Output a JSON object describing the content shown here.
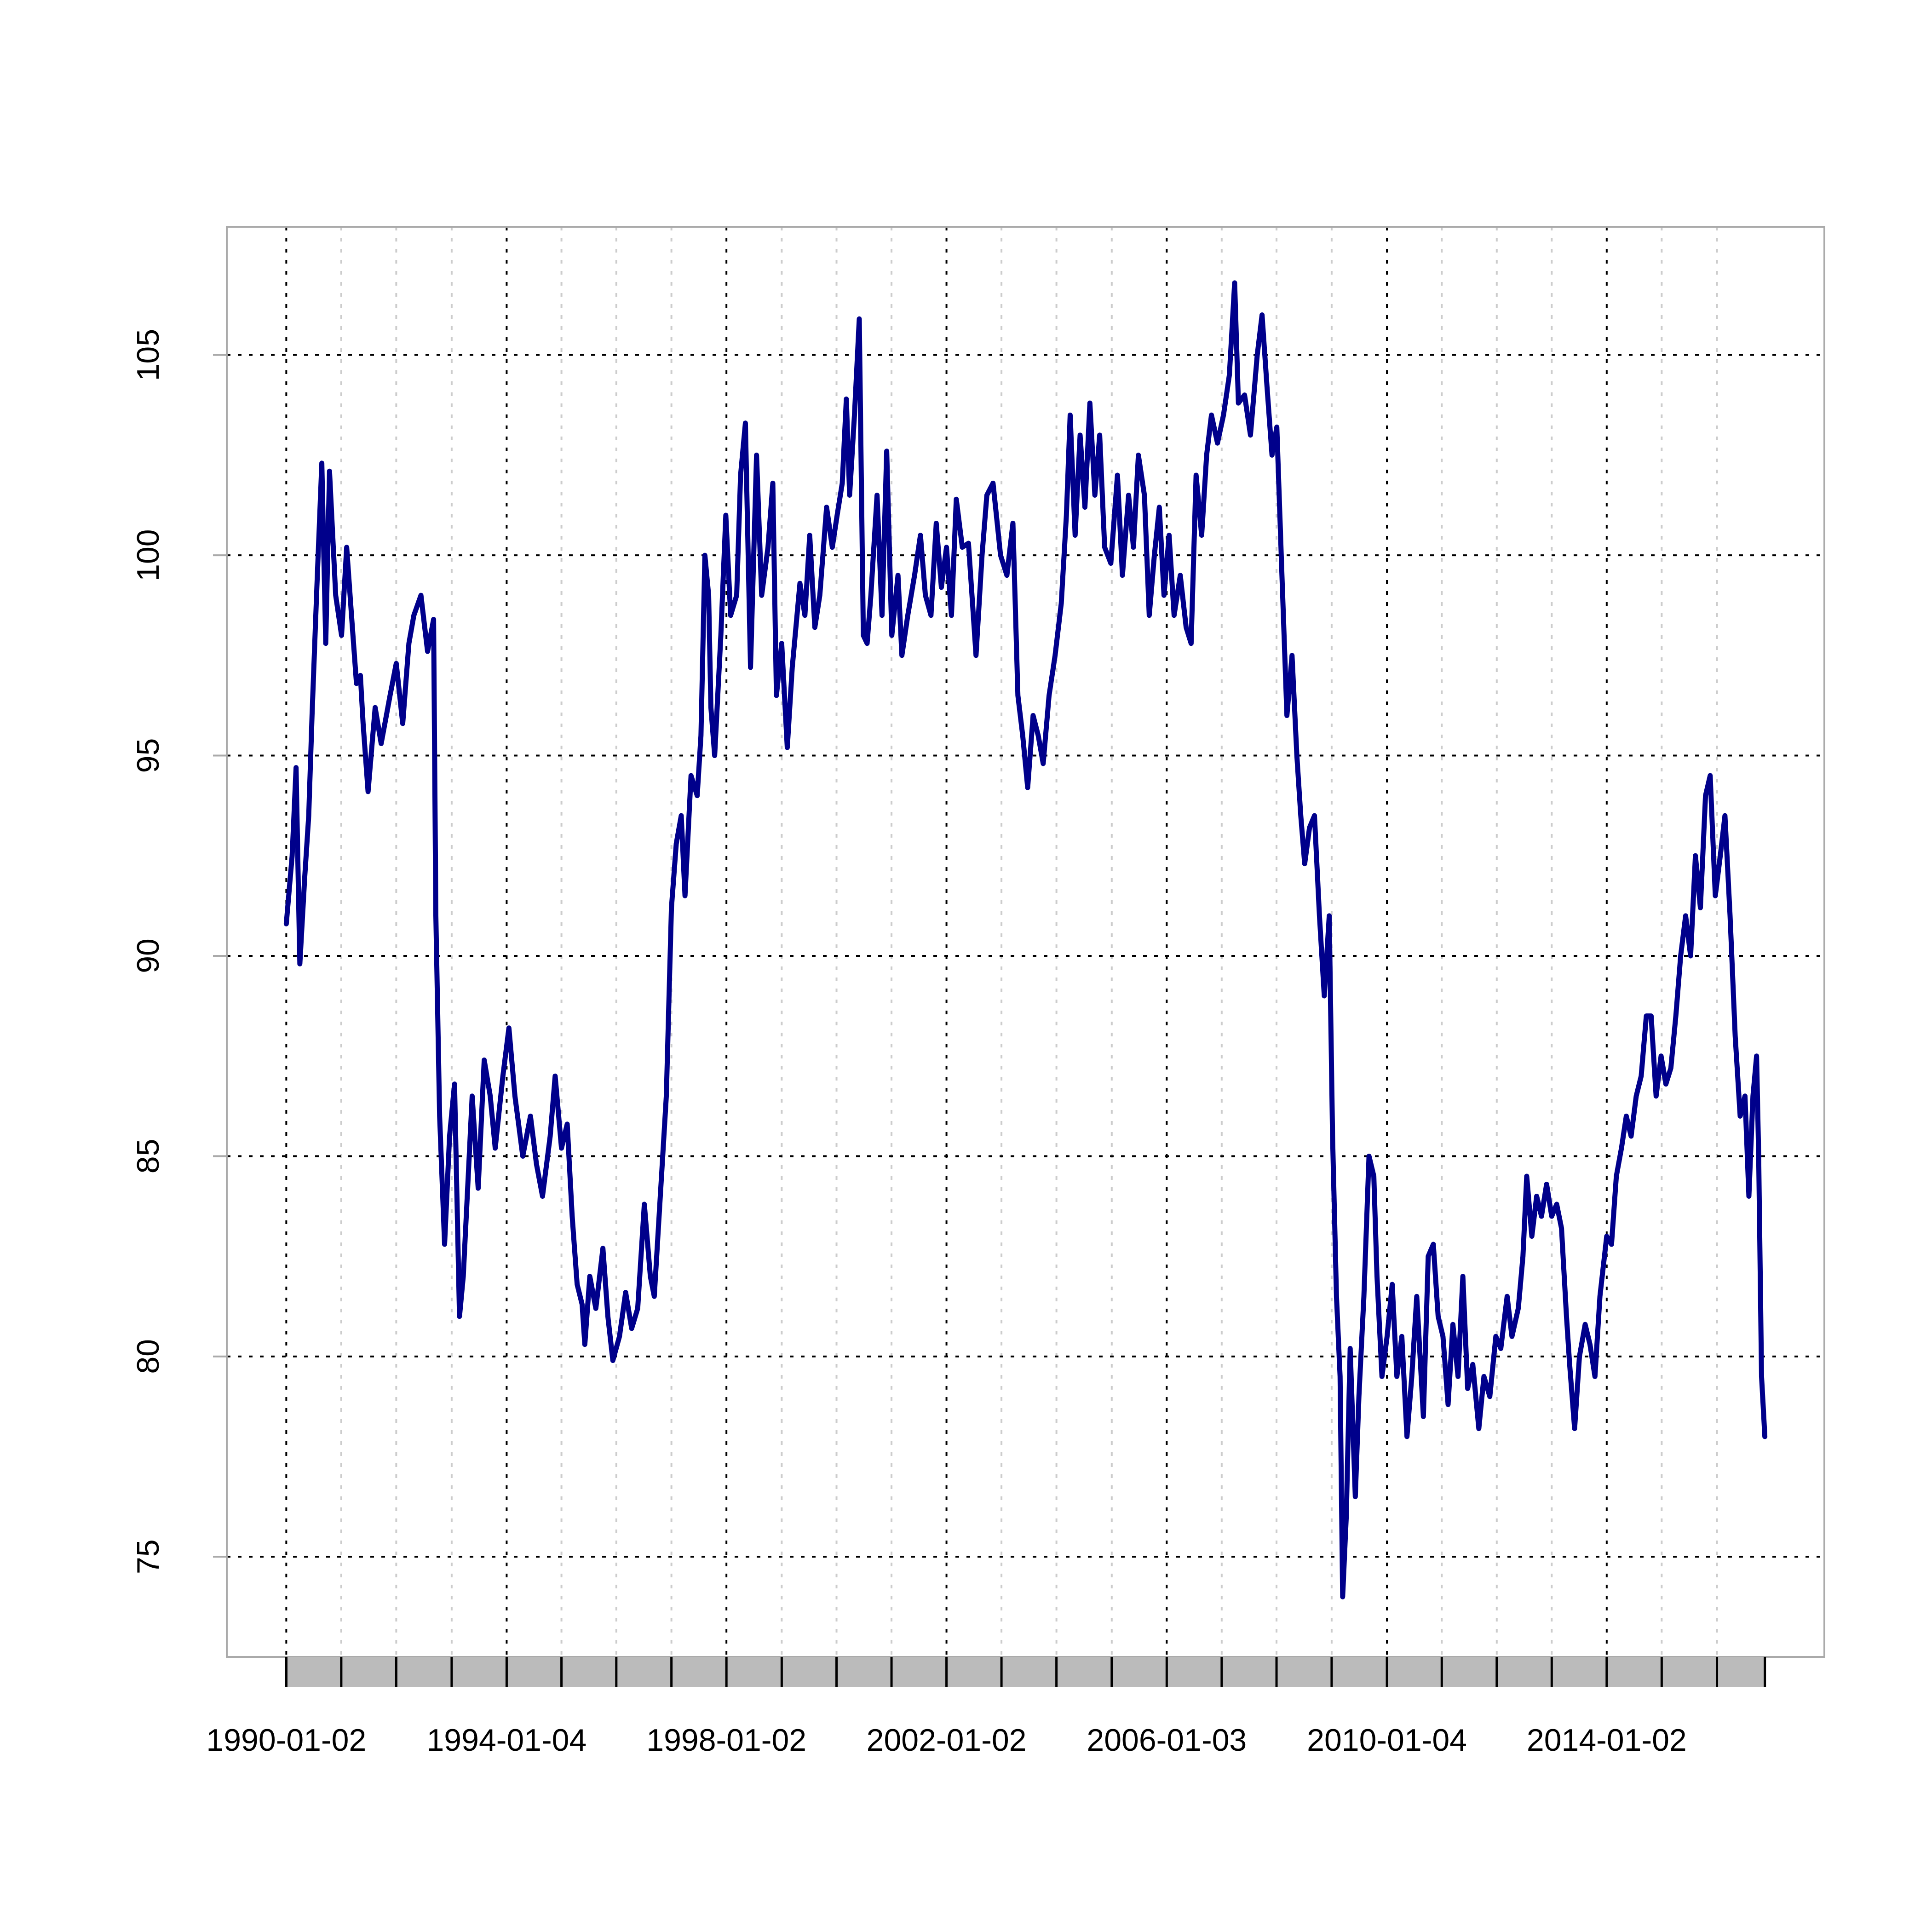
{
  "chart_data": {
    "type": "line",
    "x": [
      "1990-01-02",
      "1990-02-10",
      "1990-03-08",
      "1990-04-02",
      "1990-05-05",
      "1990-05-31",
      "1990-06-22",
      "1990-07-24",
      "1990-08-26",
      "1990-09-21",
      "1990-10-16",
      "1990-11-26",
      "1991-01-04",
      "1991-02-07",
      "1991-03-11",
      "1991-04-13",
      "1991-05-09",
      "1991-05-27",
      "1991-06-29",
      "1991-08-15",
      "1991-09-24",
      "1991-11-22",
      "1992-01-02",
      "1992-02-14",
      "1992-03-26",
      "1992-04-28",
      "1992-06-14",
      "1992-07-28",
      "1992-09-06",
      "1992-09-21",
      "1992-10-16",
      "1992-11-18",
      "1992-12-21",
      "1993-01-23",
      "1993-02-25",
      "1993-03-22",
      "1993-04-24",
      "1993-05-20",
      "1993-06-29",
      "1993-08-08",
      "1993-09-17",
      "1993-10-20",
      "1993-12-10",
      "1994-01-19",
      "1994-02-28",
      "1994-04-21",
      "1994-06-11",
      "1994-07-21",
      "1994-08-30",
      "1994-10-20",
      "1994-11-22",
      "1995-01-03",
      "1995-02-10",
      "1995-03-15",
      "1995-04-17",
      "1995-05-20",
      "1995-06-07",
      "1995-07-10",
      "1995-08-19",
      "1995-10-05",
      "1995-11-07",
      "1995-12-10",
      "1996-01-23",
      "1996-03-04",
      "1996-04-13",
      "1996-05-23",
      "1996-07-06",
      "1996-08-15",
      "1996-09-10",
      "1996-10-20",
      "1996-11-29",
      "1997-01-02",
      "1997-02-03",
      "1997-03-08",
      "1997-04-02",
      "1997-05-12",
      "1997-06-22",
      "1997-07-17",
      "1997-08-12",
      "1997-09-06",
      "1997-09-21",
      "1997-10-16",
      "1997-11-26",
      "1997-12-29",
      "1998-01-30",
      "1998-03-11",
      "1998-04-06",
      "1998-05-08",
      "1998-06-11",
      "1998-07-21",
      "1998-08-24",
      "1998-10-05",
      "1998-11-06",
      "1998-11-30",
      "1999-01-04",
      "1999-02-10",
      "1999-03-15",
      "1999-05-05",
      "1999-06-07",
      "1999-07-09",
      "1999-08-12",
      "1999-09-14",
      "1999-10-29",
      "1999-12-06",
      "2000-01-07",
      "2000-02-10",
      "2000-03-08",
      "2000-03-30",
      "2000-05-01",
      "2000-06-02",
      "2000-06-29",
      "2000-07-24",
      "2000-08-18",
      "2000-09-28",
      "2000-10-31",
      "2000-12-01",
      "2001-01-04",
      "2001-02-14",
      "2001-03-12",
      "2001-04-20",
      "2001-06-04",
      "2001-07-13",
      "2001-08-15",
      "2001-09-21",
      "2001-10-26",
      "2001-11-29",
      "2002-01-02",
      "2002-02-04",
      "2002-03-08",
      "2002-04-17",
      "2002-05-28",
      "2002-07-17",
      "2002-08-26",
      "2002-09-27",
      "2002-11-07",
      "2002-12-27",
      "2003-02-07",
      "2003-03-19",
      "2003-04-21",
      "2003-05-23",
      "2003-06-25",
      "2003-07-31",
      "2003-09-03",
      "2003-10-06",
      "2003-11-14",
      "2003-12-24",
      "2004-02-03",
      "2004-03-08",
      "2004-04-02",
      "2004-05-05",
      "2004-06-07",
      "2004-07-09",
      "2004-08-11",
      "2004-09-13",
      "2004-10-15",
      "2004-11-17",
      "2004-12-28",
      "2005-02-10",
      "2005-03-15",
      "2005-04-25",
      "2005-05-27",
      "2005-06-29",
      "2005-08-08",
      "2005-09-09",
      "2005-10-13",
      "2005-11-15",
      "2005-12-16",
      "2006-01-19",
      "2006-02-21",
      "2006-04-03",
      "2006-05-12",
      "2006-06-14",
      "2006-07-17",
      "2006-08-23",
      "2006-09-25",
      "2006-10-27",
      "2006-12-06",
      "2007-01-15",
      "2007-02-23",
      "2007-03-30",
      "2007-04-24",
      "2007-06-04",
      "2007-07-13",
      "2007-08-27",
      "2007-09-28",
      "2007-10-31",
      "2007-12-03",
      "2008-01-04",
      "2008-02-07",
      "2008-03-11",
      "2008-04-14",
      "2008-05-16",
      "2008-06-11",
      "2008-07-07",
      "2008-08-08",
      "2008-09-10",
      "2008-10-13",
      "2008-11-14",
      "2008-12-17",
      "2009-01-08",
      "2009-02-03",
      "2009-02-27",
      "2009-03-16",
      "2009-04-09",
      "2009-05-05",
      "2009-06-08",
      "2009-07-02",
      "2009-08-04",
      "2009-09-07",
      "2009-10-09",
      "2009-10-30",
      "2009-12-02",
      "2010-01-05",
      "2010-02-08",
      "2010-03-11",
      "2010-04-13",
      "2010-05-17",
      "2010-06-18",
      "2010-07-21",
      "2010-09-03",
      "2010-10-05",
      "2010-11-08",
      "2010-12-10",
      "2011-01-11",
      "2011-02-14",
      "2011-03-18",
      "2011-04-21",
      "2011-05-23",
      "2011-06-24",
      "2011-07-28",
      "2011-09-06",
      "2011-10-10",
      "2011-11-18",
      "2011-12-28",
      "2012-01-30",
      "2012-03-12",
      "2012-04-13",
      "2012-05-25",
      "2012-06-25",
      "2012-07-20",
      "2012-08-23",
      "2012-09-24",
      "2012-10-26",
      "2012-11-29",
      "2013-01-02",
      "2013-02-04",
      "2013-03-08",
      "2013-04-10",
      "2013-05-01",
      "2013-06-03",
      "2013-07-05",
      "2013-08-12",
      "2013-09-13",
      "2013-10-16",
      "2013-11-18",
      "2014-01-02",
      "2014-02-03",
      "2014-03-07",
      "2014-04-10",
      "2014-05-12",
      "2014-06-13",
      "2014-07-17",
      "2014-08-19",
      "2014-09-22",
      "2014-10-24",
      "2014-11-26",
      "2014-12-29",
      "2015-01-30",
      "2015-03-04",
      "2015-04-06",
      "2015-05-08",
      "2015-06-10",
      "2015-07-13",
      "2015-08-14",
      "2015-09-16",
      "2015-10-20",
      "2015-11-20",
      "2015-12-24",
      "2016-01-26",
      "2016-02-26",
      "2016-03-31",
      "2016-05-04",
      "2016-06-06",
      "2016-07-08",
      "2016-08-03",
      "2016-08-30",
      "2016-09-23",
      "2016-10-07",
      "2016-10-26",
      "2016-11-17"
    ],
    "series": [
      {
        "color": "#00008B",
        "values": [
          90.8,
          92.5,
          94.7,
          89.8,
          92.0,
          93.5,
          96.0,
          99.2,
          102.3,
          97.8,
          102.1,
          99.0,
          98.0,
          100.2,
          98.5,
          96.8,
          97.0,
          95.8,
          94.1,
          96.2,
          95.3,
          96.5,
          97.3,
          95.8,
          97.8,
          98.5,
          99.0,
          97.6,
          98.4,
          91.0,
          86.0,
          82.8,
          85.5,
          86.8,
          81.0,
          82.0,
          84.5,
          86.5,
          84.2,
          87.4,
          86.5,
          85.2,
          87.0,
          88.2,
          86.5,
          85.0,
          86.0,
          84.8,
          84.0,
          85.5,
          87.0,
          85.2,
          85.8,
          83.5,
          81.8,
          81.3,
          80.3,
          82.0,
          81.2,
          82.7,
          81.0,
          79.9,
          80.5,
          81.6,
          80.7,
          81.2,
          83.8,
          82.0,
          81.5,
          84.0,
          86.5,
          91.2,
          92.8,
          93.5,
          91.5,
          94.5,
          94.0,
          95.5,
          100.0,
          99.0,
          96.2,
          95.0,
          98.0,
          101.0,
          98.5,
          99.0,
          102.0,
          103.3,
          97.2,
          102.5,
          99.0,
          100.2,
          101.8,
          96.5,
          97.8,
          95.2,
          97.2,
          99.3,
          98.5,
          100.5,
          98.2,
          99.0,
          101.2,
          100.2,
          101.0,
          101.8,
          103.9,
          101.5,
          103.5,
          105.9,
          98.0,
          97.8,
          99.0,
          101.5,
          98.5,
          102.6,
          98.0,
          99.5,
          97.5,
          98.5,
          99.5,
          100.5,
          99.0,
          98.5,
          100.8,
          99.2,
          100.2,
          98.5,
          101.4,
          100.2,
          100.3,
          97.5,
          100.0,
          101.5,
          101.8,
          100.0,
          99.5,
          100.8,
          96.5,
          95.5,
          94.2,
          96.0,
          95.5,
          94.8,
          96.5,
          97.5,
          98.8,
          101.0,
          103.5,
          100.5,
          103.0,
          101.2,
          103.8,
          101.5,
          103.0,
          100.2,
          99.8,
          102.0,
          99.5,
          101.5,
          100.2,
          102.5,
          101.5,
          98.5,
          100.0,
          101.2,
          99.0,
          100.5,
          98.5,
          99.5,
          98.2,
          97.8,
          102.0,
          100.5,
          102.5,
          103.5,
          102.8,
          103.5,
          104.5,
          106.8,
          103.8,
          104.0,
          103.0,
          105.0,
          106.0,
          104.2,
          102.5,
          103.2,
          99.5,
          96.0,
          97.5,
          95.0,
          93.5,
          92.3,
          93.2,
          93.5,
          91.0,
          89.0,
          91.0,
          85.5,
          81.5,
          79.5,
          74.0,
          76.0,
          80.2,
          76.5,
          79.0,
          81.5,
          85.0,
          84.5,
          82.0,
          79.5,
          80.5,
          81.8,
          79.5,
          80.5,
          78.0,
          79.5,
          81.5,
          78.5,
          82.5,
          82.8,
          81.0,
          80.5,
          78.8,
          80.8,
          79.5,
          82.0,
          79.2,
          79.8,
          78.2,
          79.5,
          79.0,
          80.5,
          80.2,
          81.5,
          80.5,
          81.2,
          82.5,
          84.5,
          83.0,
          84.0,
          83.5,
          84.3,
          83.5,
          83.8,
          83.2,
          81.0,
          79.8,
          78.2,
          80.0,
          80.8,
          80.3,
          79.5,
          81.5,
          83.0,
          82.8,
          84.5,
          85.2,
          86.0,
          85.5,
          86.5,
          87.0,
          88.5,
          88.5,
          86.5,
          87.5,
          86.8,
          87.2,
          88.5,
          90.0,
          91.0,
          90.0,
          92.5,
          91.2,
          94.0,
          94.5,
          91.5,
          92.5,
          93.5,
          91.0,
          88.0,
          86.0,
          86.5,
          84.0,
          86.5,
          87.5,
          85.0,
          79.5,
          78.0
        ]
      }
    ],
    "xlim": [
      "1988-12-03",
      "2017-12-17"
    ],
    "xticks": [
      "1990-01-02",
      "1994-01-04",
      "1998-01-02",
      "2002-01-02",
      "2006-01-03",
      "2010-01-04",
      "2014-01-02"
    ],
    "xticks_minor": [
      "1991-01-02",
      "1992-01-02",
      "1993-01-04",
      "1995-01-03",
      "1996-01-02",
      "1997-01-02",
      "1999-01-04",
      "2000-01-03",
      "2001-01-02",
      "2003-01-02",
      "2004-01-02",
      "2005-01-03",
      "2007-01-03",
      "2008-01-02",
      "2009-01-02",
      "2011-01-03",
      "2012-01-03",
      "2013-01-02",
      "2015-01-02",
      "2016-01-04"
    ],
    "ylim": [
      72.5,
      108.2
    ],
    "yticks": [
      75,
      80,
      85,
      90,
      95,
      100,
      105
    ],
    "grid": true
  }
}
